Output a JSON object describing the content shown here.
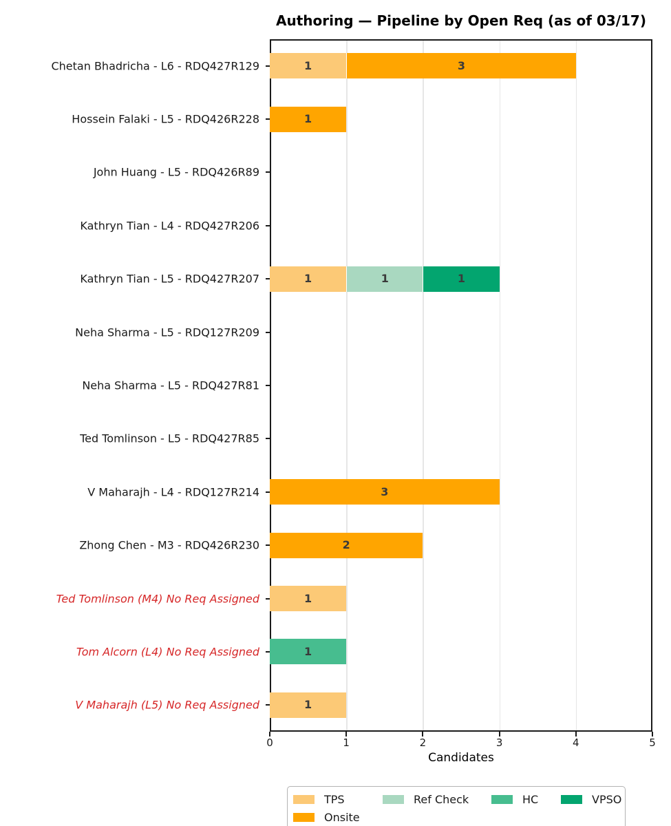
{
  "chart_data": {
    "type": "bar",
    "orientation": "horizontal",
    "title": "Authoring — Pipeline by Open Req (as of 03/17)",
    "xlabel": "Candidates",
    "xlim": [
      0,
      5
    ],
    "xticks": [
      0,
      1,
      2,
      3,
      4,
      5
    ],
    "grid": "vertical-light-gray",
    "legend_position": "bottom-center",
    "stages": [
      {
        "name": "TPS",
        "color": "#fcc976"
      },
      {
        "name": "Ref Check",
        "color": "#a9d8c0"
      },
      {
        "name": "HC",
        "color": "#47bd8f"
      },
      {
        "name": "VPSO",
        "color": "#03a56f"
      },
      {
        "name": "Onsite",
        "color": "#ffa500"
      }
    ],
    "rows": [
      {
        "label": "Chetan Bhadricha - L6 - RDQ427R129",
        "no_req": false,
        "segments": [
          {
            "stage": "TPS",
            "value": 1
          },
          {
            "stage": "Onsite",
            "value": 3
          }
        ]
      },
      {
        "label": "Hossein Falaki - L5 - RDQ426R228",
        "no_req": false,
        "segments": [
          {
            "stage": "Onsite",
            "value": 1
          }
        ]
      },
      {
        "label": "John Huang - L5 - RDQ426R89",
        "no_req": false,
        "segments": []
      },
      {
        "label": "Kathryn Tian - L4 - RDQ427R206",
        "no_req": false,
        "segments": []
      },
      {
        "label": "Kathryn Tian - L5 - RDQ427R207",
        "no_req": false,
        "segments": [
          {
            "stage": "TPS",
            "value": 1
          },
          {
            "stage": "Ref Check",
            "value": 1
          },
          {
            "stage": "VPSO",
            "value": 1
          }
        ]
      },
      {
        "label": "Neha Sharma - L5 - RDQ127R209",
        "no_req": false,
        "segments": []
      },
      {
        "label": "Neha Sharma - L5 - RDQ427R81",
        "no_req": false,
        "segments": []
      },
      {
        "label": "Ted Tomlinson - L5 - RDQ427R85",
        "no_req": false,
        "segments": []
      },
      {
        "label": "V Maharajh - L4 - RDQ127R214",
        "no_req": false,
        "segments": [
          {
            "stage": "Onsite",
            "value": 3
          }
        ]
      },
      {
        "label": "Zhong Chen - M3 - RDQ426R230",
        "no_req": false,
        "segments": [
          {
            "stage": "Onsite",
            "value": 2
          }
        ]
      },
      {
        "label": "Ted Tomlinson (M4) No Req Assigned",
        "no_req": true,
        "segments": [
          {
            "stage": "TPS",
            "value": 1
          }
        ]
      },
      {
        "label": "Tom Alcorn (L4) No Req Assigned",
        "no_req": true,
        "segments": [
          {
            "stage": "HC",
            "value": 1
          }
        ]
      },
      {
        "label": "V Maharajh (L5) No Req Assigned",
        "no_req": true,
        "segments": [
          {
            "stage": "TPS",
            "value": 1
          }
        ]
      }
    ],
    "colors": {
      "no_req_label": "#d62728",
      "value_label": "#3a3a3a",
      "gridline": "#e6e6e6",
      "spine": "#1a1a1a"
    }
  }
}
